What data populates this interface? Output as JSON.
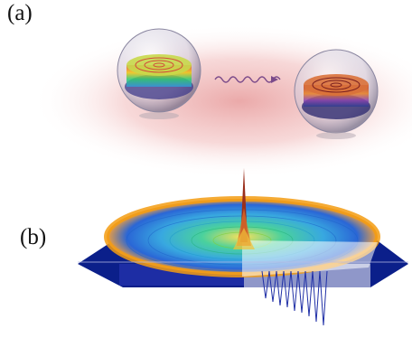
{
  "panels": {
    "a": {
      "label": "(a)"
    },
    "b": {
      "label": "(b)"
    }
  },
  "colors": {
    "glow": "#e9a8a8",
    "ring_hot": "#c0392b",
    "ring_warm": "#f1c40f",
    "ring_cool": "#2ecc71",
    "ring_cold": "#3498db",
    "base": "#0b1f8a",
    "arrow": "#7a4a8a"
  },
  "icons": [
    "sphere-resonator-left",
    "sphere-resonator-right",
    "wavy-arrow",
    "ring-resonator-3d",
    "central-spike"
  ]
}
